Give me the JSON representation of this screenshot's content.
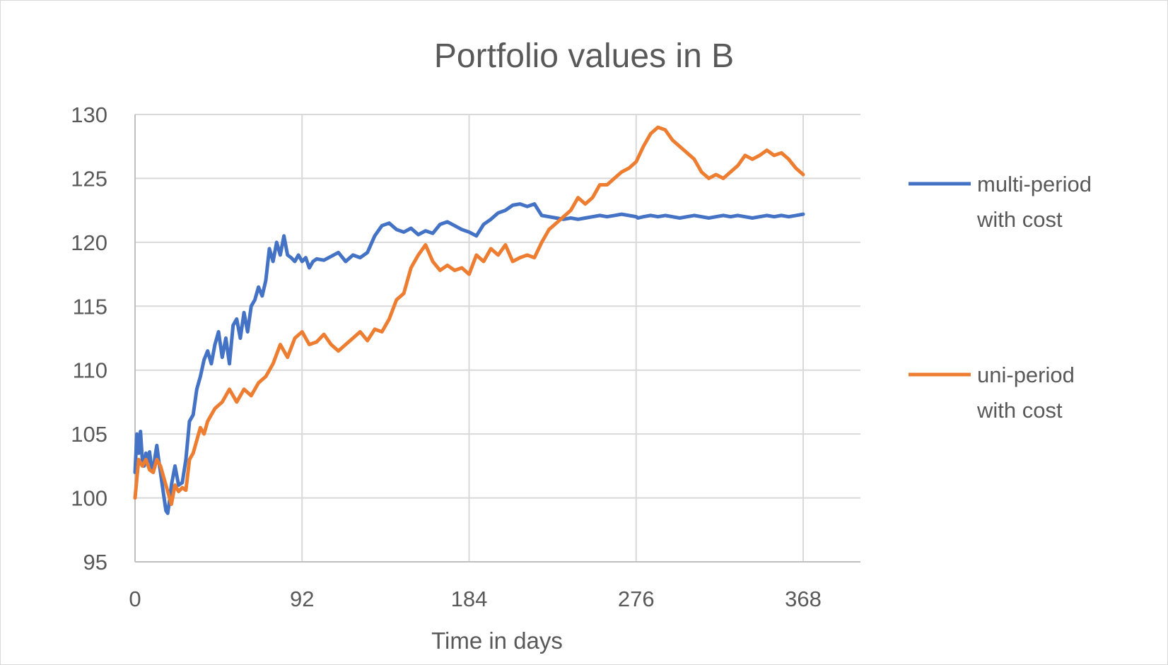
{
  "chart_data": {
    "type": "line",
    "title": "Portfolio values in B",
    "xlabel": "Time in days",
    "ylabel": "",
    "xlim": [
      0,
      368
    ],
    "ylim": [
      95,
      130
    ],
    "x_ticks": [
      0,
      92,
      184,
      276,
      368
    ],
    "y_ticks": [
      95,
      100,
      105,
      110,
      115,
      120,
      125,
      130
    ],
    "grid": true,
    "legend_position": "right",
    "series": [
      {
        "name": "multi-period with cost",
        "legend_lines": [
          "multi-period",
          "with cost"
        ],
        "color": "#4472c4",
        "x": [
          0,
          1,
          2,
          3,
          4,
          5,
          6,
          7,
          8,
          9,
          10,
          11,
          12,
          13,
          14,
          15,
          16,
          17,
          18,
          19,
          20,
          22,
          24,
          26,
          28,
          30,
          32,
          34,
          36,
          38,
          40,
          42,
          44,
          46,
          48,
          50,
          52,
          54,
          56,
          58,
          60,
          62,
          64,
          66,
          68,
          70,
          72,
          74,
          76,
          78,
          80,
          82,
          84,
          86,
          88,
          90,
          92,
          94,
          96,
          98,
          100,
          104,
          108,
          112,
          116,
          120,
          124,
          128,
          132,
          136,
          140,
          144,
          148,
          152,
          156,
          160,
          164,
          168,
          172,
          176,
          180,
          184,
          188,
          192,
          196,
          200,
          204,
          208,
          212,
          216,
          220,
          224,
          228,
          232,
          236,
          240,
          244,
          248,
          252,
          256,
          260,
          264,
          268,
          272,
          276,
          277,
          280,
          284,
          288,
          292,
          296,
          300,
          304,
          308,
          312,
          316,
          320,
          324,
          328,
          332,
          336,
          340,
          344,
          348,
          352,
          356,
          360,
          364,
          368
        ],
        "values": [
          102.0,
          105.0,
          103.5,
          105.2,
          103.0,
          102.5,
          103.5,
          102.8,
          103.6,
          102.5,
          102.0,
          103.2,
          104.1,
          103.0,
          102.0,
          101.0,
          100.0,
          99.0,
          98.8,
          99.8,
          101.0,
          102.5,
          101.0,
          101.2,
          103.0,
          106.0,
          106.5,
          108.5,
          109.5,
          110.8,
          111.5,
          110.5,
          112.0,
          113.0,
          111.0,
          112.5,
          110.5,
          113.5,
          114.0,
          112.5,
          114.5,
          113.0,
          115.0,
          115.5,
          116.5,
          115.8,
          117.0,
          119.5,
          118.5,
          120.0,
          119.0,
          120.5,
          119.0,
          118.8,
          118.5,
          119.0,
          118.5,
          118.8,
          118.0,
          118.5,
          118.7,
          118.6,
          118.9,
          119.2,
          118.5,
          119.0,
          118.8,
          119.2,
          120.5,
          121.3,
          121.5,
          121.0,
          120.8,
          121.1,
          120.6,
          120.9,
          120.7,
          121.4,
          121.6,
          121.3,
          121.0,
          120.8,
          120.5,
          121.4,
          121.8,
          122.3,
          122.5,
          122.9,
          123.0,
          122.8,
          123.0,
          122.1,
          122.0,
          121.9,
          121.8,
          121.9,
          121.8,
          121.9,
          122.0,
          122.1,
          122.0,
          122.1,
          122.2,
          122.1,
          122.0,
          121.9,
          122.0,
          122.1,
          122.0,
          122.1,
          122.0,
          121.9,
          122.0,
          122.1,
          122.0,
          121.9,
          122.0,
          122.1,
          122.0,
          122.1,
          122.0,
          121.9,
          122.0,
          122.1,
          122.0,
          122.1,
          122.0,
          122.1,
          122.2
        ],
        "note_ignore": ""
      },
      {
        "name": "uni-period with cost",
        "legend_lines": [
          "uni-period",
          "with cost"
        ],
        "color": "#ed7d31",
        "x": [
          0,
          2,
          4,
          6,
          8,
          10,
          12,
          14,
          16,
          18,
          20,
          22,
          24,
          26,
          28,
          30,
          32,
          34,
          36,
          38,
          40,
          44,
          48,
          52,
          56,
          60,
          64,
          68,
          72,
          76,
          80,
          84,
          88,
          92,
          96,
          100,
          104,
          108,
          112,
          116,
          120,
          124,
          128,
          132,
          136,
          140,
          144,
          148,
          152,
          156,
          160,
          164,
          168,
          172,
          176,
          180,
          184,
          188,
          192,
          196,
          200,
          204,
          208,
          212,
          216,
          220,
          224,
          228,
          232,
          236,
          240,
          244,
          248,
          252,
          256,
          260,
          264,
          268,
          272,
          276,
          280,
          284,
          288,
          292,
          296,
          300,
          304,
          308,
          312,
          316,
          320,
          324,
          328,
          332,
          336,
          340,
          344,
          348,
          352,
          356,
          360,
          364,
          368
        ],
        "values": [
          100.0,
          103.0,
          102.5,
          103.0,
          102.2,
          102.0,
          103.0,
          102.5,
          101.5,
          100.5,
          99.5,
          101.0,
          100.5,
          100.8,
          100.6,
          103.0,
          103.5,
          104.5,
          105.5,
          105.0,
          106.0,
          107.0,
          107.5,
          108.5,
          107.5,
          108.5,
          108.0,
          109.0,
          109.5,
          110.5,
          112.0,
          111.0,
          112.5,
          113.0,
          112.0,
          112.2,
          112.8,
          112.0,
          111.5,
          112.0,
          112.5,
          113.0,
          112.3,
          113.2,
          113.0,
          114.0,
          115.5,
          116.0,
          118.0,
          119.0,
          119.8,
          118.5,
          117.8,
          118.2,
          117.8,
          118.0,
          117.5,
          119.0,
          118.5,
          119.5,
          119.0,
          119.8,
          118.5,
          118.8,
          119.0,
          118.8,
          120.0,
          121.0,
          121.5,
          122.0,
          122.5,
          123.5,
          123.0,
          123.5,
          124.5,
          124.5,
          125.0,
          125.5,
          125.8,
          126.3,
          127.5,
          128.5,
          129.0,
          128.8,
          128.0,
          127.5,
          127.0,
          126.5,
          125.5,
          125.0,
          125.3,
          125.0,
          125.5,
          126.0,
          126.8,
          126.5,
          126.8,
          127.2,
          126.8,
          127.0,
          126.5,
          125.8,
          125.3
        ]
      }
    ]
  }
}
